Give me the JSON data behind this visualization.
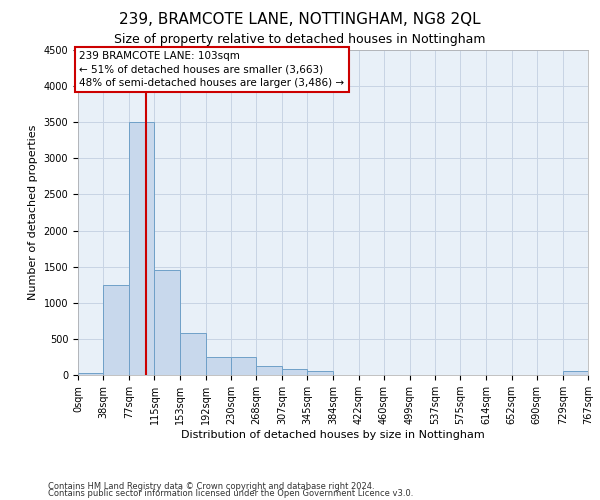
{
  "title": "239, BRAMCOTE LANE, NOTTINGHAM, NG8 2QL",
  "subtitle": "Size of property relative to detached houses in Nottingham",
  "xlabel": "Distribution of detached houses by size in Nottingham",
  "ylabel": "Number of detached properties",
  "footer_line1": "Contains HM Land Registry data © Crown copyright and database right 2024.",
  "footer_line2": "Contains public sector information licensed under the Open Government Licence v3.0.",
  "bin_edges": [
    0,
    38,
    77,
    115,
    153,
    192,
    230,
    268,
    307,
    345,
    384,
    422,
    460,
    499,
    537,
    575,
    614,
    652,
    690,
    729,
    767
  ],
  "bar_heights": [
    30,
    1250,
    3500,
    1450,
    580,
    250,
    250,
    120,
    80,
    60,
    0,
    0,
    0,
    0,
    0,
    0,
    0,
    0,
    0,
    50
  ],
  "bar_color": "#c8d8ec",
  "bar_edge_color": "#6fa0c8",
  "property_size": 103,
  "vline_color": "#cc0000",
  "ylim": [
    0,
    4500
  ],
  "yticks": [
    0,
    500,
    1000,
    1500,
    2000,
    2500,
    3000,
    3500,
    4000,
    4500
  ],
  "annotation_text": "239 BRAMCOTE LANE: 103sqm\n← 51% of detached houses are smaller (3,663)\n48% of semi-detached houses are larger (3,486) →",
  "annotation_box_color": "#ffffff",
  "annotation_box_edge": "#cc0000",
  "grid_color": "#c8d4e4",
  "background_color": "#e8f0f8",
  "title_fontsize": 11,
  "subtitle_fontsize": 9,
  "axis_label_fontsize": 8,
  "tick_fontsize": 7,
  "annotation_fontsize": 7.5,
  "footer_fontsize": 6
}
